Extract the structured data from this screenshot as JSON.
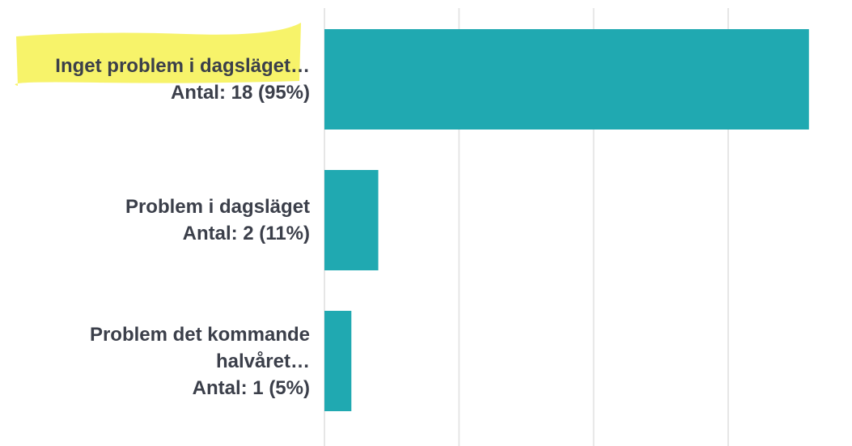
{
  "chart_data": {
    "type": "barh",
    "categories": [
      "Inget problem i dagsläget…",
      "Problem i dagsläget",
      "Problem det kommande halvåret…"
    ],
    "values": [
      18,
      2,
      1
    ],
    "value_labels": [
      "Antal: 18 (95%)",
      "Antal: 2 (11%)",
      "Antal: 1 (5%)"
    ],
    "color": "#20a9b1",
    "xlim": [
      0,
      19.6
    ],
    "xticks": [
      0,
      5,
      10,
      15
    ],
    "grid": true
  }
}
